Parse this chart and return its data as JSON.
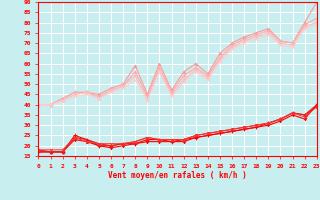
{
  "background_color": "#c8eef0",
  "grid_color": "#ffffff",
  "xlabel": "Vent moyen/en rafales ( km/h )",
  "xlabel_color": "#ff0000",
  "tick_color": "#ff0000",
  "axis_color": "#ff0000",
  "xmin": 0,
  "xmax": 23,
  "ymin": 15,
  "ymax": 90,
  "yticks": [
    15,
    20,
    25,
    30,
    35,
    40,
    45,
    50,
    55,
    60,
    65,
    70,
    75,
    80,
    85,
    90
  ],
  "xticks": [
    0,
    1,
    2,
    3,
    4,
    5,
    6,
    7,
    8,
    9,
    10,
    11,
    12,
    13,
    14,
    15,
    16,
    17,
    18,
    19,
    20,
    21,
    22,
    23
  ],
  "series": [
    {
      "x": [
        0,
        1,
        2,
        3,
        4,
        5,
        6,
        7,
        8,
        9,
        10,
        11,
        12,
        13,
        14,
        15,
        16,
        17,
        18,
        19,
        20,
        21,
        22,
        23
      ],
      "y": [
        17,
        17,
        17,
        23,
        22,
        20,
        19,
        20,
        21,
        22,
        22,
        22,
        22,
        24,
        25,
        26,
        27,
        28,
        29,
        30,
        32,
        35,
        33,
        40
      ],
      "color": "#ff0000",
      "marker": "v",
      "ms": 2.0,
      "lw": 0.8
    },
    {
      "x": [
        0,
        1,
        2,
        3,
        4,
        5,
        6,
        7,
        8,
        9,
        10,
        11,
        12,
        13,
        14,
        15,
        16,
        17,
        18,
        19,
        20,
        21,
        22,
        23
      ],
      "y": [
        17,
        17,
        17,
        25,
        23,
        20,
        20,
        21,
        21,
        23,
        23,
        22,
        23,
        24,
        25,
        26,
        27,
        28,
        29,
        31,
        33,
        36,
        35,
        39
      ],
      "color": "#ff0000",
      "marker": "+",
      "ms": 2.5,
      "lw": 0.8
    },
    {
      "x": [
        0,
        1,
        2,
        3,
        4,
        5,
        6,
        7,
        8,
        9,
        10,
        11,
        12,
        13,
        14,
        15,
        16,
        17,
        18,
        19,
        20,
        21,
        22,
        23
      ],
      "y": [
        18,
        17,
        17,
        24,
        23,
        21,
        20,
        21,
        22,
        24,
        23,
        23,
        23,
        25,
        26,
        27,
        28,
        29,
        30,
        31,
        33,
        36,
        35,
        40
      ],
      "color": "#dd2222",
      "marker": "^",
      "ms": 2.0,
      "lw": 0.8
    },
    {
      "x": [
        0,
        1,
        2,
        3,
        4,
        5,
        6,
        7,
        8,
        9,
        10,
        11,
        12,
        13,
        14,
        15,
        16,
        17,
        18,
        19,
        20,
        21,
        22,
        23
      ],
      "y": [
        18,
        18,
        18,
        24,
        22,
        21,
        21,
        21,
        22,
        24,
        23,
        23,
        23,
        25,
        26,
        27,
        28,
        29,
        30,
        31,
        33,
        36,
        34,
        39
      ],
      "color": "#ff3333",
      "marker": "x",
      "ms": 2.0,
      "lw": 0.7
    },
    {
      "x": [
        0,
        1,
        2,
        3,
        4,
        5,
        6,
        7,
        8,
        9,
        10,
        11,
        12,
        13,
        14,
        15,
        16,
        17,
        18,
        19,
        20,
        21,
        22,
        23
      ],
      "y": [
        40,
        40,
        43,
        46,
        46,
        45,
        48,
        50,
        59,
        45,
        60,
        47,
        56,
        60,
        55,
        65,
        70,
        73,
        75,
        77,
        71,
        70,
        80,
        90
      ],
      "color": "#ff9999",
      "marker": "^",
      "ms": 2.0,
      "lw": 0.8
    },
    {
      "x": [
        0,
        1,
        2,
        3,
        4,
        5,
        6,
        7,
        8,
        9,
        10,
        11,
        12,
        13,
        14,
        15,
        16,
        17,
        18,
        19,
        20,
        21,
        22,
        23
      ],
      "y": [
        40,
        40,
        43,
        46,
        46,
        44,
        47,
        49,
        56,
        44,
        58,
        46,
        54,
        58,
        54,
        63,
        69,
        72,
        74,
        76,
        71,
        70,
        79,
        82
      ],
      "color": "#ffaaaa",
      "marker": "+",
      "ms": 2.5,
      "lw": 0.8
    },
    {
      "x": [
        0,
        1,
        2,
        3,
        4,
        5,
        6,
        7,
        8,
        9,
        10,
        11,
        12,
        13,
        14,
        15,
        16,
        17,
        18,
        19,
        20,
        21,
        22,
        23
      ],
      "y": [
        40,
        40,
        42,
        45,
        46,
        43,
        47,
        49,
        54,
        43,
        57,
        45,
        52,
        57,
        53,
        62,
        68,
        71,
        73,
        75,
        70,
        69,
        78,
        80
      ],
      "color": "#ffbbbb",
      "marker": "v",
      "ms": 2.0,
      "lw": 0.8
    },
    {
      "x": [
        0,
        1,
        2,
        3,
        4,
        5,
        6,
        7,
        8,
        9,
        10,
        11,
        12,
        13,
        14,
        15,
        16,
        17,
        18,
        19,
        20,
        21,
        22,
        23
      ],
      "y": [
        40,
        40,
        42,
        44,
        45,
        43,
        46,
        48,
        52,
        42,
        56,
        44,
        51,
        56,
        52,
        61,
        67,
        70,
        72,
        74,
        69,
        68,
        77,
        79
      ],
      "color": "#ffcccc",
      "marker": "x",
      "ms": 2.0,
      "lw": 0.7
    }
  ]
}
